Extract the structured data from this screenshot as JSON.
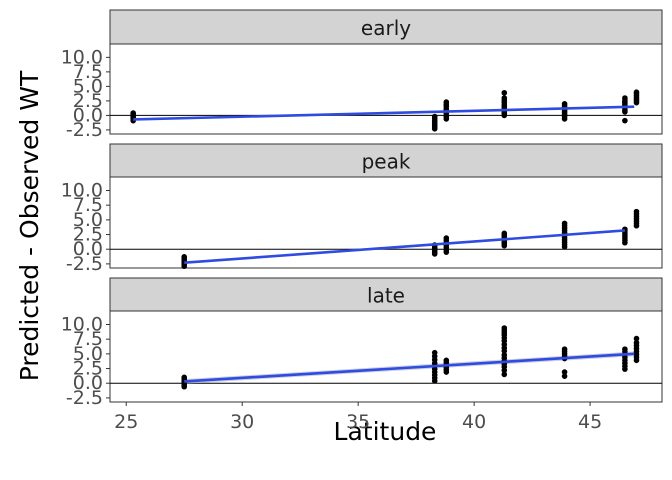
{
  "chart_data": {
    "type": "scatter",
    "xlabel": "Latitude",
    "ylabel": "Predicted - Observed WT",
    "xlim": [
      24.3,
      48.1
    ],
    "x_ticks": [
      25,
      30,
      35,
      40,
      45
    ],
    "y_ticks": [
      -2.5,
      0.0,
      2.5,
      5.0,
      7.5,
      10.0
    ],
    "y_tick_labels": [
      "-2.5",
      "0.0",
      "2.5",
      "5.0",
      "7.5",
      "10.0"
    ],
    "hline_y": 0,
    "colors": {
      "fit": "#2f4be0",
      "points": "#000000",
      "strip": "#d3d3d3"
    },
    "facets": [
      {
        "label": "early",
        "ylim": [
          -3.2,
          12.3
        ],
        "fit": {
          "x": [
            25.3,
            46.9
          ],
          "y": [
            -0.7,
            1.5
          ]
        },
        "points": [
          {
            "x": 25.3,
            "y": [
              -0.9,
              -0.6,
              -0.4,
              -0.2,
              0.0,
              0.2,
              0.4
            ]
          },
          {
            "x": 38.3,
            "y": [
              -2.3,
              -2.0,
              -1.7,
              -1.4,
              -1.1,
              -0.8,
              -0.5,
              -0.2
            ]
          },
          {
            "x": 38.8,
            "y": [
              -0.6,
              -0.2,
              0.3,
              0.6,
              0.9,
              1.2,
              1.6,
              1.9,
              2.3
            ]
          },
          {
            "x": 41.3,
            "y": [
              0.0,
              0.3,
              0.6,
              0.9,
              1.2,
              1.5,
              1.8,
              2.2,
              2.6,
              3.0,
              3.9
            ]
          },
          {
            "x": 43.9,
            "y": [
              -0.6,
              -0.2,
              0.2,
              0.5,
              0.8,
              1.1,
              1.4,
              1.7,
              2.0
            ]
          },
          {
            "x": 46.5,
            "y": [
              -0.9,
              0.6,
              0.9,
              1.3,
              1.7,
              2.0,
              2.3,
              2.6,
              3.0
            ]
          },
          {
            "x": 47.0,
            "y": [
              2.2,
              2.5,
              2.8,
              3.1,
              3.4,
              3.7,
              4.0
            ]
          }
        ]
      },
      {
        "label": "peak",
        "ylim": [
          -3.2,
          12.3
        ],
        "fit": {
          "x": [
            27.5,
            46.5
          ],
          "y": [
            -2.3,
            3.2
          ]
        },
        "points": [
          {
            "x": 27.5,
            "y": [
              -2.9,
              -2.6,
              -2.3,
              -2.1,
              -1.8,
              -1.5,
              -1.3
            ]
          },
          {
            "x": 38.3,
            "y": [
              -0.8,
              -0.5,
              -0.2,
              0.1,
              0.4,
              0.7
            ]
          },
          {
            "x": 38.8,
            "y": [
              -0.5,
              -0.1,
              0.3,
              0.7,
              1.1,
              1.5,
              1.9
            ]
          },
          {
            "x": 41.3,
            "y": [
              0.6,
              0.9,
              1.2,
              1.5,
              1.8,
              2.1,
              2.4,
              2.7
            ]
          },
          {
            "x": 43.9,
            "y": [
              0.4,
              0.8,
              1.2,
              1.6,
              2.0,
              2.4,
              2.8,
              3.2,
              3.6,
              4.0,
              4.4
            ]
          },
          {
            "x": 46.5,
            "y": [
              1.1,
              1.5,
              1.9,
              2.3,
              2.7,
              3.1,
              3.4
            ]
          },
          {
            "x": 47.0,
            "y": [
              4.0,
              4.4,
              4.8,
              5.2,
              5.6,
              6.0,
              6.4
            ]
          }
        ]
      },
      {
        "label": "late",
        "ylim": [
          -3.2,
          12.3
        ],
        "fit": {
          "x": [
            27.5,
            46.9
          ],
          "y": [
            0.3,
            5.0
          ]
        },
        "ci": {
          "x": [
            27.5,
            46.9
          ],
          "lower": [
            -0.1,
            4.6
          ],
          "upper": [
            0.7,
            5.4
          ]
        },
        "points": [
          {
            "x": 27.5,
            "y": [
              -0.6,
              -0.3,
              0.0,
              0.2,
              0.5,
              0.8,
              1.0
            ]
          },
          {
            "x": 38.3,
            "y": [
              0.4,
              0.9,
              1.4,
              1.9,
              2.4,
              2.9,
              3.4,
              4.0,
              4.6,
              5.2
            ]
          },
          {
            "x": 38.8,
            "y": [
              1.9,
              2.3,
              2.7,
              3.1,
              3.5,
              3.9
            ]
          },
          {
            "x": 41.3,
            "y": [
              1.5,
              2.2,
              2.8,
              3.3,
              3.8,
              4.3,
              4.8,
              5.5,
              6.0,
              6.6,
              7.2,
              7.7,
              8.2,
              8.6,
              9.0,
              9.4
            ]
          },
          {
            "x": 43.9,
            "y": [
              1.2,
              1.9,
              4.2,
              4.6,
              5.0,
              5.4,
              5.8
            ]
          },
          {
            "x": 46.5,
            "y": [
              2.4,
              2.9,
              3.4,
              3.9,
              4.4,
              4.9,
              5.4,
              5.8
            ]
          },
          {
            "x": 47.0,
            "y": [
              3.9,
              4.4,
              4.9,
              5.4,
              5.9,
              6.4,
              6.9,
              7.6
            ]
          }
        ]
      }
    ]
  }
}
